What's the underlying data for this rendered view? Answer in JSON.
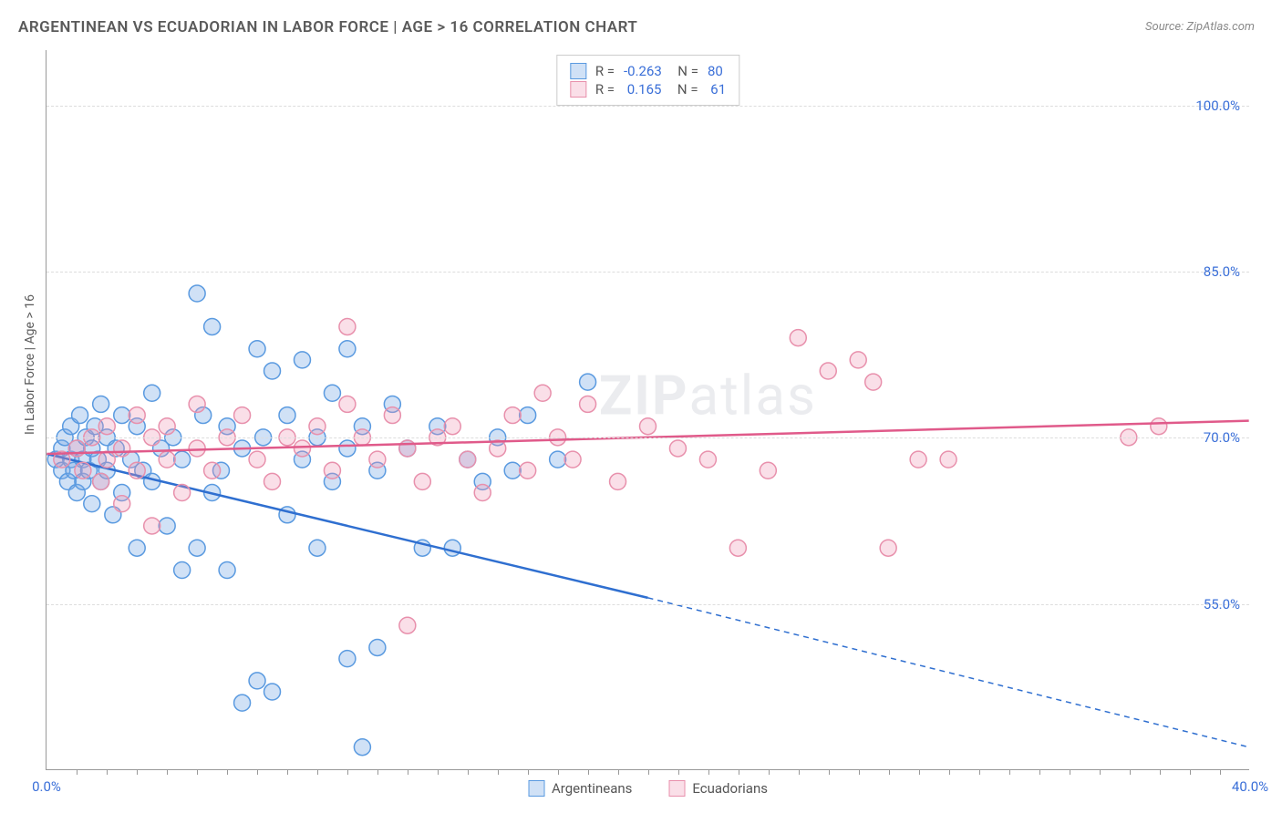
{
  "title": "ARGENTINEAN VS ECUADORIAN IN LABOR FORCE | AGE > 16 CORRELATION CHART",
  "source_label": "Source: ZipAtlas.com",
  "watermark": {
    "bold": "ZIP",
    "rest": "atlas"
  },
  "chart": {
    "type": "scatter",
    "ylabel": "In Labor Force | Age > 16",
    "xlim": [
      0,
      40
    ],
    "ylim": [
      40,
      105
    ],
    "xticks": [
      0,
      40
    ],
    "xtick_labels": [
      "0.0%",
      "40.0%"
    ],
    "xtick_minor": [
      1,
      2,
      3,
      4,
      5,
      6,
      7,
      8,
      9,
      10,
      11,
      12,
      13,
      14,
      15,
      16,
      17,
      18,
      19,
      20,
      21,
      22,
      23,
      24,
      25,
      26,
      27,
      28,
      29,
      30,
      31,
      32,
      33,
      34,
      35,
      36,
      37,
      38,
      39
    ],
    "yticks": [
      55,
      70,
      85,
      100
    ],
    "ytick_labels": [
      "55.0%",
      "70.0%",
      "85.0%",
      "100.0%"
    ],
    "grid_color": "#dddddd",
    "axis_color": "#999999",
    "tick_label_color": "#3a6fd8",
    "background_color": "#ffffff",
    "marker_radius": 9,
    "marker_stroke_width": 1.5,
    "line_width": 2.5,
    "label_fontsize": 14,
    "tick_fontsize": 15,
    "series": {
      "argentineans": {
        "label": "Argentineans",
        "fill": "rgba(120,170,230,0.35)",
        "stroke": "#5a9ae0",
        "line_color": "#2f6fd0",
        "R": "-0.263",
        "N": "80",
        "trend": {
          "x1": 0,
          "y1": 68.5,
          "x2_solid": 20,
          "y2_solid": 55.5,
          "x2": 40,
          "y2": 42
        },
        "points": [
          [
            0.3,
            68
          ],
          [
            0.5,
            67
          ],
          [
            0.5,
            69
          ],
          [
            0.6,
            70
          ],
          [
            0.7,
            66
          ],
          [
            0.8,
            68
          ],
          [
            0.8,
            71
          ],
          [
            0.9,
            67
          ],
          [
            1.0,
            69
          ],
          [
            1.0,
            65
          ],
          [
            1.1,
            72
          ],
          [
            1.2,
            68
          ],
          [
            1.2,
            66
          ],
          [
            1.3,
            70
          ],
          [
            1.4,
            67
          ],
          [
            1.5,
            69
          ],
          [
            1.5,
            64
          ],
          [
            1.6,
            71
          ],
          [
            1.7,
            68
          ],
          [
            1.8,
            66
          ],
          [
            1.8,
            73
          ],
          [
            2.0,
            67
          ],
          [
            2.0,
            70
          ],
          [
            2.2,
            63
          ],
          [
            2.3,
            69
          ],
          [
            2.5,
            72
          ],
          [
            2.5,
            65
          ],
          [
            2.8,
            68
          ],
          [
            3.0,
            71
          ],
          [
            3.0,
            60
          ],
          [
            3.2,
            67
          ],
          [
            3.5,
            66
          ],
          [
            3.5,
            74
          ],
          [
            3.8,
            69
          ],
          [
            4.0,
            62
          ],
          [
            4.2,
            70
          ],
          [
            4.5,
            58
          ],
          [
            4.5,
            68
          ],
          [
            5.0,
            83
          ],
          [
            5.0,
            60
          ],
          [
            5.2,
            72
          ],
          [
            5.5,
            65
          ],
          [
            5.5,
            80
          ],
          [
            5.8,
            67
          ],
          [
            6.0,
            58
          ],
          [
            6.0,
            71
          ],
          [
            6.5,
            69
          ],
          [
            6.5,
            46
          ],
          [
            7.0,
            78
          ],
          [
            7.0,
            48
          ],
          [
            7.2,
            70
          ],
          [
            7.5,
            76
          ],
          [
            7.5,
            47
          ],
          [
            8.0,
            72
          ],
          [
            8.0,
            63
          ],
          [
            8.5,
            77
          ],
          [
            8.5,
            68
          ],
          [
            9.0,
            70
          ],
          [
            9.0,
            60
          ],
          [
            9.5,
            74
          ],
          [
            9.5,
            66
          ],
          [
            10.0,
            78
          ],
          [
            10.0,
            69
          ],
          [
            10.0,
            50
          ],
          [
            10.5,
            71
          ],
          [
            10.5,
            42
          ],
          [
            11.0,
            67
          ],
          [
            11.0,
            51
          ],
          [
            11.5,
            73
          ],
          [
            12.0,
            69
          ],
          [
            12.5,
            60
          ],
          [
            13.0,
            71
          ],
          [
            13.5,
            60
          ],
          [
            14.0,
            68
          ],
          [
            14.5,
            66
          ],
          [
            15.0,
            70
          ],
          [
            15.5,
            67
          ],
          [
            16.0,
            72
          ],
          [
            17.0,
            68
          ],
          [
            18.0,
            75
          ]
        ]
      },
      "ecuadorians": {
        "label": "Ecuadorians",
        "fill": "rgba(240,150,180,0.30)",
        "stroke": "#e890ac",
        "line_color": "#e05a8a",
        "R": "0.165",
        "N": "61",
        "trend": {
          "x1": 0,
          "y1": 68.5,
          "x2_solid": 40,
          "y2_solid": 71.5,
          "x2": 40,
          "y2": 71.5
        },
        "points": [
          [
            0.5,
            68
          ],
          [
            1.0,
            69
          ],
          [
            1.2,
            67
          ],
          [
            1.5,
            70
          ],
          [
            1.8,
            66
          ],
          [
            2.0,
            68
          ],
          [
            2.0,
            71
          ],
          [
            2.5,
            64
          ],
          [
            2.5,
            69
          ],
          [
            3.0,
            67
          ],
          [
            3.0,
            72
          ],
          [
            3.5,
            70
          ],
          [
            3.5,
            62
          ],
          [
            4.0,
            68
          ],
          [
            4.0,
            71
          ],
          [
            4.5,
            65
          ],
          [
            5.0,
            69
          ],
          [
            5.0,
            73
          ],
          [
            5.5,
            67
          ],
          [
            6.0,
            70
          ],
          [
            6.5,
            72
          ],
          [
            7.0,
            68
          ],
          [
            7.5,
            66
          ],
          [
            8.0,
            70
          ],
          [
            8.5,
            69
          ],
          [
            9.0,
            71
          ],
          [
            9.5,
            67
          ],
          [
            10.0,
            73
          ],
          [
            10.0,
            80
          ],
          [
            10.5,
            70
          ],
          [
            11.0,
            68
          ],
          [
            11.5,
            72
          ],
          [
            12.0,
            69
          ],
          [
            12.0,
            53
          ],
          [
            12.5,
            66
          ],
          [
            13.0,
            70
          ],
          [
            13.5,
            71
          ],
          [
            14.0,
            68
          ],
          [
            14.5,
            65
          ],
          [
            15.0,
            69
          ],
          [
            15.5,
            72
          ],
          [
            16.0,
            67
          ],
          [
            16.5,
            74
          ],
          [
            17.0,
            70
          ],
          [
            17.5,
            68
          ],
          [
            18.0,
            73
          ],
          [
            19.0,
            66
          ],
          [
            20.0,
            71
          ],
          [
            21.0,
            69
          ],
          [
            22.0,
            68
          ],
          [
            23.0,
            60
          ],
          [
            24.0,
            67
          ],
          [
            25.0,
            79
          ],
          [
            26.0,
            76
          ],
          [
            27.0,
            77
          ],
          [
            27.5,
            75
          ],
          [
            28.0,
            60
          ],
          [
            29.0,
            68
          ],
          [
            30.0,
            68
          ],
          [
            36.0,
            70
          ],
          [
            37.0,
            71
          ]
        ]
      }
    }
  }
}
